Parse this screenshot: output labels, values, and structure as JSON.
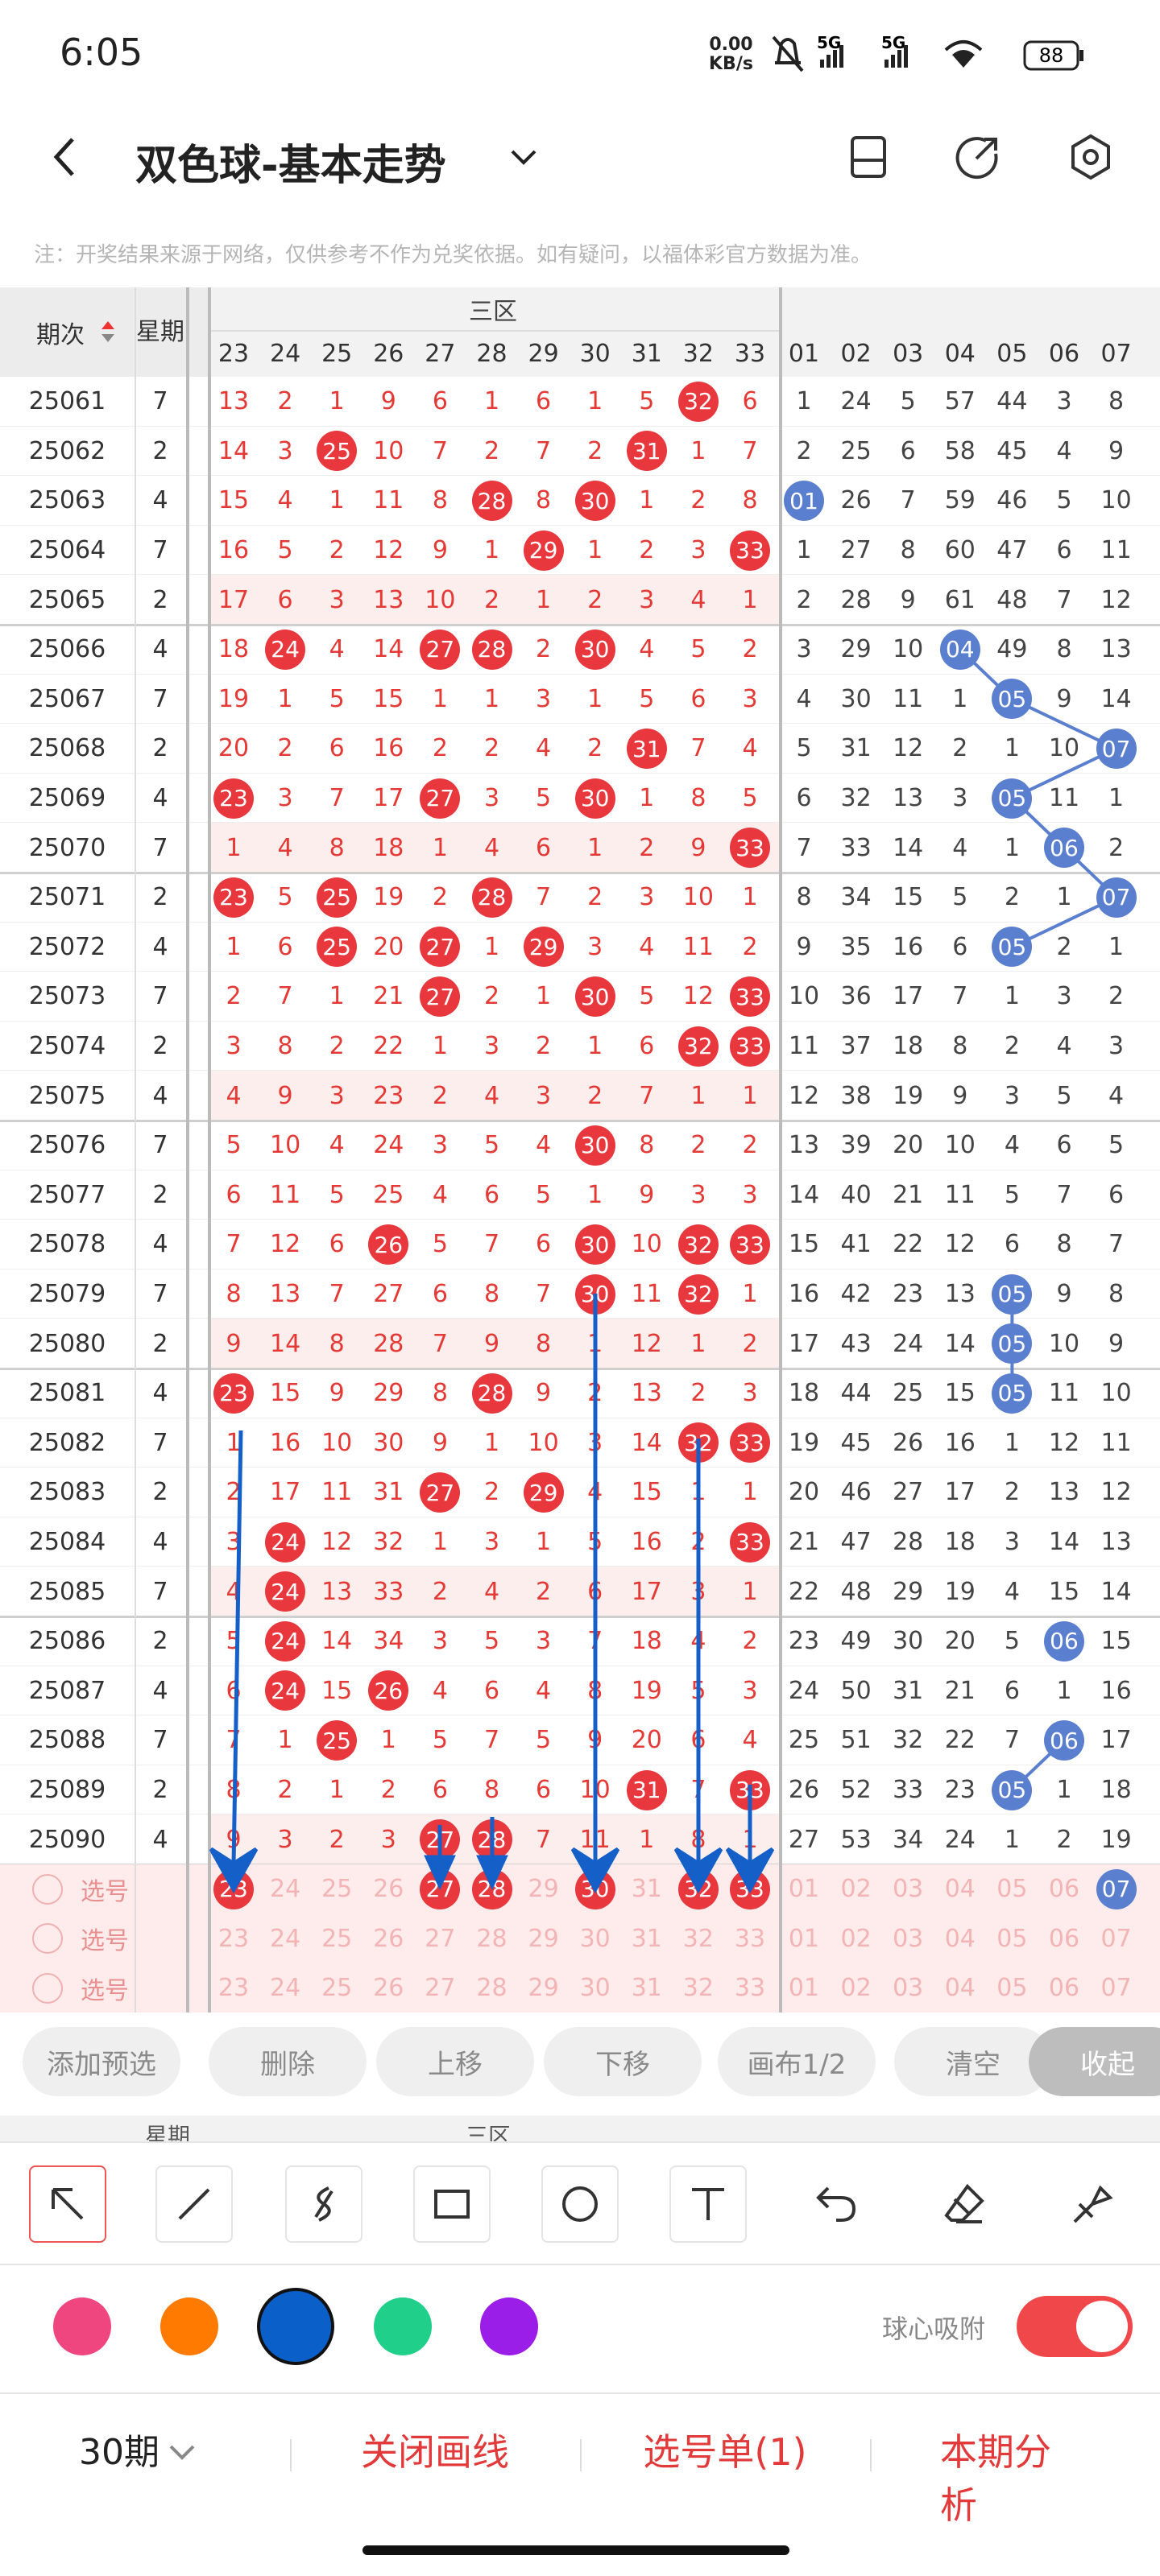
{
  "status": {
    "time": "6:05",
    "speed": "0.00",
    "speed_unit": "KB/s",
    "net1": "5G",
    "net2": "5G",
    "battery": "88"
  },
  "header": {
    "title": "双色球-基本走势"
  },
  "note": "注：开奖结果来源于网络，仅供参考不作为兑奖依据。如有疑问，以福体彩官方数据为准。",
  "table": {
    "col_issue": "期次",
    "col_week": "星期",
    "zone": "三区",
    "red_cols": [
      "23",
      "24",
      "25",
      "26",
      "27",
      "28",
      "29",
      "30",
      "31",
      "32",
      "33"
    ],
    "blue_cols": [
      "01",
      "02",
      "03",
      "04",
      "05",
      "06",
      "07"
    ],
    "rows": [
      {
        "issue": "25061",
        "week": "7",
        "red": [
          "13",
          "2",
          "1",
          "9",
          "6",
          "1",
          "6",
          "1",
          "5",
          "32",
          "6"
        ],
        "blue": [
          "1",
          "24",
          "5",
          "57",
          "44",
          "3",
          "8"
        ]
      },
      {
        "issue": "25062",
        "week": "2",
        "red": [
          "14",
          "3",
          "25",
          "10",
          "7",
          "2",
          "7",
          "2",
          "31",
          "1",
          "7"
        ],
        "blue": [
          "2",
          "25",
          "6",
          "58",
          "45",
          "4",
          "9"
        ]
      },
      {
        "issue": "25063",
        "week": "4",
        "red": [
          "15",
          "4",
          "1",
          "11",
          "8",
          "28",
          "8",
          "30",
          "1",
          "2",
          "8"
        ],
        "blue": [
          "01",
          "26",
          "7",
          "59",
          "46",
          "5",
          "10"
        ]
      },
      {
        "issue": "25064",
        "week": "7",
        "red": [
          "16",
          "5",
          "2",
          "12",
          "9",
          "1",
          "29",
          "1",
          "2",
          "3",
          "33"
        ],
        "blue": [
          "1",
          "27",
          "8",
          "60",
          "47",
          "6",
          "11"
        ]
      },
      {
        "issue": "25065",
        "week": "2",
        "red": [
          "17",
          "6",
          "3",
          "13",
          "10",
          "2",
          "1",
          "2",
          "3",
          "4",
          "1"
        ],
        "blue": [
          "2",
          "28",
          "9",
          "61",
          "48",
          "7",
          "12"
        ]
      },
      {
        "issue": "25066",
        "week": "4",
        "red": [
          "18",
          "24",
          "4",
          "14",
          "27",
          "28",
          "2",
          "30",
          "4",
          "5",
          "2"
        ],
        "blue": [
          "3",
          "29",
          "10",
          "04",
          "49",
          "8",
          "13"
        ]
      },
      {
        "issue": "25067",
        "week": "7",
        "red": [
          "19",
          "1",
          "5",
          "15",
          "1",
          "1",
          "3",
          "1",
          "5",
          "6",
          "3"
        ],
        "blue": [
          "4",
          "30",
          "11",
          "1",
          "05",
          "9",
          "14"
        ]
      },
      {
        "issue": "25068",
        "week": "2",
        "red": [
          "20",
          "2",
          "6",
          "16",
          "2",
          "2",
          "4",
          "2",
          "31",
          "7",
          "4"
        ],
        "blue": [
          "5",
          "31",
          "12",
          "2",
          "1",
          "10",
          "07"
        ]
      },
      {
        "issue": "25069",
        "week": "4",
        "red": [
          "23",
          "3",
          "7",
          "17",
          "27",
          "3",
          "5",
          "30",
          "1",
          "8",
          "5"
        ],
        "blue": [
          "6",
          "32",
          "13",
          "3",
          "05",
          "11",
          "1"
        ]
      },
      {
        "issue": "25070",
        "week": "7",
        "red": [
          "1",
          "4",
          "8",
          "18",
          "1",
          "4",
          "6",
          "1",
          "2",
          "9",
          "33"
        ],
        "blue": [
          "7",
          "33",
          "14",
          "4",
          "1",
          "06",
          "2"
        ]
      },
      {
        "issue": "25071",
        "week": "2",
        "red": [
          "23",
          "5",
          "25",
          "19",
          "2",
          "28",
          "7",
          "2",
          "3",
          "10",
          "1"
        ],
        "blue": [
          "8",
          "34",
          "15",
          "5",
          "2",
          "1",
          "07"
        ]
      },
      {
        "issue": "25072",
        "week": "4",
        "red": [
          "1",
          "6",
          "25",
          "20",
          "27",
          "1",
          "29",
          "3",
          "4",
          "11",
          "2"
        ],
        "blue": [
          "9",
          "35",
          "16",
          "6",
          "05",
          "2",
          "1"
        ]
      },
      {
        "issue": "25073",
        "week": "7",
        "red": [
          "2",
          "7",
          "1",
          "21",
          "27",
          "2",
          "1",
          "30",
          "5",
          "12",
          "33"
        ],
        "blue": [
          "10",
          "36",
          "17",
          "7",
          "1",
          "3",
          "2"
        ]
      },
      {
        "issue": "25074",
        "week": "2",
        "red": [
          "3",
          "8",
          "2",
          "22",
          "1",
          "3",
          "2",
          "1",
          "6",
          "32",
          "33"
        ],
        "blue": [
          "11",
          "37",
          "18",
          "8",
          "2",
          "4",
          "3"
        ]
      },
      {
        "issue": "25075",
        "week": "4",
        "red": [
          "4",
          "9",
          "3",
          "23",
          "2",
          "4",
          "3",
          "2",
          "7",
          "1",
          "1"
        ],
        "blue": [
          "12",
          "38",
          "19",
          "9",
          "3",
          "5",
          "4"
        ]
      },
      {
        "issue": "25076",
        "week": "7",
        "red": [
          "5",
          "10",
          "4",
          "24",
          "3",
          "5",
          "4",
          "30",
          "8",
          "2",
          "2"
        ],
        "blue": [
          "13",
          "39",
          "20",
          "10",
          "4",
          "6",
          "5"
        ]
      },
      {
        "issue": "25077",
        "week": "2",
        "red": [
          "6",
          "11",
          "5",
          "25",
          "4",
          "6",
          "5",
          "1",
          "9",
          "3",
          "3"
        ],
        "blue": [
          "14",
          "40",
          "21",
          "11",
          "5",
          "7",
          "6"
        ]
      },
      {
        "issue": "25078",
        "week": "4",
        "red": [
          "7",
          "12",
          "6",
          "26",
          "5",
          "7",
          "6",
          "30",
          "10",
          "32",
          "33"
        ],
        "blue": [
          "15",
          "41",
          "22",
          "12",
          "6",
          "8",
          "7"
        ]
      },
      {
        "issue": "25079",
        "week": "7",
        "red": [
          "8",
          "13",
          "7",
          "27",
          "6",
          "8",
          "7",
          "30",
          "11",
          "32",
          "1"
        ],
        "blue": [
          "16",
          "42",
          "23",
          "13",
          "05",
          "9",
          "8"
        ]
      },
      {
        "issue": "25080",
        "week": "2",
        "red": [
          "9",
          "14",
          "8",
          "28",
          "7",
          "9",
          "8",
          "1",
          "12",
          "1",
          "2"
        ],
        "blue": [
          "17",
          "43",
          "24",
          "14",
          "05",
          "10",
          "9"
        ]
      },
      {
        "issue": "25081",
        "week": "4",
        "red": [
          "23",
          "15",
          "9",
          "29",
          "8",
          "28",
          "9",
          "2",
          "13",
          "2",
          "3"
        ],
        "blue": [
          "18",
          "44",
          "25",
          "15",
          "05",
          "11",
          "10"
        ]
      },
      {
        "issue": "25082",
        "week": "7",
        "red": [
          "1",
          "16",
          "10",
          "30",
          "9",
          "1",
          "10",
          "3",
          "14",
          "32",
          "33"
        ],
        "blue": [
          "19",
          "45",
          "26",
          "16",
          "1",
          "12",
          "11"
        ]
      },
      {
        "issue": "25083",
        "week": "2",
        "red": [
          "2",
          "17",
          "11",
          "31",
          "27",
          "2",
          "29",
          "4",
          "15",
          "1",
          "1"
        ],
        "blue": [
          "20",
          "46",
          "27",
          "17",
          "2",
          "13",
          "12"
        ]
      },
      {
        "issue": "25084",
        "week": "4",
        "red": [
          "3",
          "24",
          "12",
          "32",
          "1",
          "3",
          "1",
          "5",
          "16",
          "2",
          "33"
        ],
        "blue": [
          "21",
          "47",
          "28",
          "18",
          "3",
          "14",
          "13"
        ]
      },
      {
        "issue": "25085",
        "week": "7",
        "red": [
          "4",
          "24",
          "13",
          "33",
          "2",
          "4",
          "2",
          "6",
          "17",
          "3",
          "1"
        ],
        "blue": [
          "22",
          "48",
          "29",
          "19",
          "4",
          "15",
          "14"
        ]
      },
      {
        "issue": "25086",
        "week": "2",
        "red": [
          "5",
          "24",
          "14",
          "34",
          "3",
          "5",
          "3",
          "7",
          "18",
          "4",
          "2"
        ],
        "blue": [
          "23",
          "49",
          "30",
          "20",
          "5",
          "06",
          "15"
        ]
      },
      {
        "issue": "25087",
        "week": "4",
        "red": [
          "6",
          "24",
          "15",
          "26",
          "4",
          "6",
          "4",
          "8",
          "19",
          "5",
          "3"
        ],
        "blue": [
          "24",
          "50",
          "31",
          "21",
          "6",
          "1",
          "16"
        ]
      },
      {
        "issue": "25088",
        "week": "7",
        "red": [
          "7",
          "1",
          "25",
          "1",
          "5",
          "7",
          "5",
          "9",
          "20",
          "6",
          "4"
        ],
        "blue": [
          "25",
          "51",
          "32",
          "22",
          "7",
          "06",
          "17"
        ]
      },
      {
        "issue": "25089",
        "week": "2",
        "red": [
          "8",
          "2",
          "1",
          "2",
          "6",
          "8",
          "6",
          "10",
          "31",
          "7",
          "33"
        ],
        "blue": [
          "26",
          "52",
          "33",
          "23",
          "05",
          "1",
          "18"
        ]
      },
      {
        "issue": "25090",
        "week": "4",
        "red": [
          "9",
          "3",
          "2",
          "3",
          "27",
          "28",
          "7",
          "11",
          "1",
          "8",
          "1"
        ],
        "blue": [
          "27",
          "53",
          "34",
          "24",
          "1",
          "2",
          "19"
        ]
      }
    ]
  },
  "picks": {
    "labels": [
      "选号",
      "选号",
      "选号"
    ],
    "rows": [
      {
        "red": [
          "23",
          "27",
          "28",
          "30",
          "32",
          "33"
        ],
        "blue": [
          "07"
        ]
      },
      {
        "red": [],
        "blue": []
      },
      {
        "red": [],
        "blue": []
      }
    ]
  },
  "buttons": [
    "添加预选",
    "删除",
    "上移",
    "下移",
    "画布1/2",
    "清空",
    "收起"
  ],
  "colors": [
    "#f0467f",
    "#ff7a00",
    "#0a5fc9",
    "#1fcf8a",
    "#9b1ee8"
  ],
  "snap": {
    "label": "球心吸附",
    "on": true
  },
  "footer": {
    "period": "30期",
    "close": "关闭画线",
    "list": "选号单(1)",
    "analysis": "本期分析"
  }
}
